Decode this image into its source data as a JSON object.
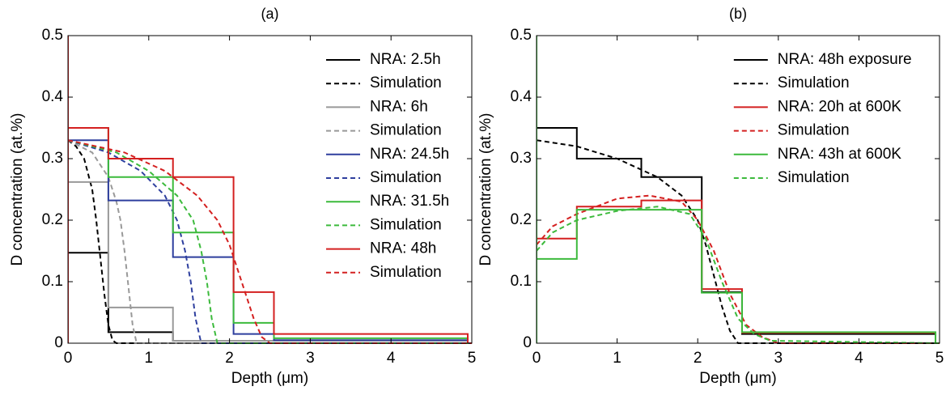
{
  "chart_data": [
    {
      "type": "line",
      "title": "(a)",
      "xlabel": "Depth (μm)",
      "ylabel": "D concentration (at.%)",
      "xlim": [
        0,
        5
      ],
      "xticks": [
        0,
        1,
        2,
        3,
        4,
        5
      ],
      "ylim": [
        0,
        0.5
      ],
      "yticks": [
        0,
        0.1,
        0.2,
        0.3,
        0.4,
        0.5
      ],
      "legend": "upper right",
      "series": [
        {
          "name": "NRA: 2.5h",
          "color": "#000000",
          "dashed": false,
          "x": [
            0,
            0,
            0.5,
            0.5,
            1.3,
            1.3,
            4.95,
            4.95
          ],
          "values": [
            0,
            0.147,
            0.147,
            0.018,
            0.018,
            0.004,
            0.004,
            0
          ]
        },
        {
          "name": "Simulation",
          "color": "#000000",
          "dashed": true,
          "x": [
            0,
            0.1,
            0.2,
            0.3,
            0.35,
            0.4,
            0.45,
            0.5,
            0.55,
            0.6,
            5
          ],
          "values": [
            0.33,
            0.32,
            0.3,
            0.25,
            0.2,
            0.14,
            0.08,
            0.03,
            0.005,
            0,
            0
          ]
        },
        {
          "name": "NRA: 6h",
          "color": "#999999",
          "dashed": false,
          "x": [
            0,
            0,
            0.5,
            0.5,
            1.3,
            1.3,
            4.95,
            4.95
          ],
          "values": [
            0,
            0.262,
            0.262,
            0.058,
            0.058,
            0.004,
            0.004,
            0
          ]
        },
        {
          "name": "Simulation",
          "color": "#999999",
          "dashed": true,
          "x": [
            0,
            0.3,
            0.5,
            0.6,
            0.65,
            0.7,
            0.75,
            0.8,
            0.85,
            5
          ],
          "values": [
            0.33,
            0.31,
            0.27,
            0.23,
            0.2,
            0.15,
            0.09,
            0.03,
            0,
            0
          ]
        },
        {
          "name": "NRA: 24.5h",
          "color": "#2e3f9e",
          "dashed": false,
          "x": [
            0,
            0,
            0.5,
            0.5,
            1.3,
            1.3,
            2.05,
            2.05,
            2.55,
            2.55,
            4.95,
            4.95
          ],
          "values": [
            0,
            0.33,
            0.33,
            0.232,
            0.232,
            0.14,
            0.14,
            0.015,
            0.015,
            0.005,
            0.005,
            0
          ]
        },
        {
          "name": "Simulation",
          "color": "#2e3f9e",
          "dashed": true,
          "x": [
            0,
            0.5,
            0.9,
            1.2,
            1.35,
            1.45,
            1.52,
            1.58,
            1.65,
            5
          ],
          "values": [
            0.33,
            0.31,
            0.28,
            0.24,
            0.2,
            0.15,
            0.1,
            0.04,
            0,
            0
          ]
        },
        {
          "name": "NRA: 31.5h",
          "color": "#3cba3c",
          "dashed": false,
          "x": [
            0,
            0,
            0.5,
            0.5,
            1.3,
            1.3,
            2.05,
            2.05,
            2.55,
            2.55,
            4.95,
            4.95
          ],
          "values": [
            0,
            0.35,
            0.35,
            0.27,
            0.27,
            0.18,
            0.18,
            0.033,
            0.033,
            0.008,
            0.008,
            0
          ]
        },
        {
          "name": "Simulation",
          "color": "#3cba3c",
          "dashed": true,
          "x": [
            0,
            0.6,
            1.0,
            1.35,
            1.55,
            1.65,
            1.72,
            1.78,
            1.85,
            5
          ],
          "values": [
            0.33,
            0.31,
            0.28,
            0.24,
            0.2,
            0.15,
            0.1,
            0.04,
            0,
            0
          ]
        },
        {
          "name": "NRA: 48h",
          "color": "#d42020",
          "dashed": false,
          "x": [
            0,
            0,
            0,
            0.5,
            0.5,
            1.3,
            1.3,
            2.05,
            2.05,
            2.55,
            2.55,
            4.95,
            4.95
          ],
          "values": [
            0,
            0.5,
            0.35,
            0.35,
            0.3,
            0.3,
            0.27,
            0.27,
            0.083,
            0.083,
            0.015,
            0.015,
            0
          ]
        },
        {
          "name": "Simulation",
          "color": "#d42020",
          "dashed": true,
          "x": [
            0,
            0.7,
            1.2,
            1.6,
            1.85,
            2.0,
            2.15,
            2.3,
            2.4,
            2.5,
            5
          ],
          "values": [
            0.33,
            0.31,
            0.28,
            0.24,
            0.2,
            0.16,
            0.1,
            0.04,
            0.01,
            0,
            0
          ]
        }
      ]
    },
    {
      "type": "line",
      "title": "(b)",
      "xlabel": "Depth (μm)",
      "ylabel": "D concentration (at.%)",
      "xlim": [
        0,
        5
      ],
      "xticks": [
        0,
        1,
        2,
        3,
        4,
        5
      ],
      "ylim": [
        0,
        0.5
      ],
      "yticks": [
        0,
        0.1,
        0.2,
        0.3,
        0.4,
        0.5
      ],
      "legend": "upper right",
      "series": [
        {
          "name": "NRA: 48h exposure",
          "color": "#000000",
          "dashed": false,
          "x": [
            0,
            0,
            0,
            0.5,
            0.5,
            1.3,
            1.3,
            2.05,
            2.05,
            2.55,
            2.55,
            4.95,
            4.95
          ],
          "values": [
            0,
            0.5,
            0.35,
            0.35,
            0.3,
            0.3,
            0.27,
            0.27,
            0.083,
            0.083,
            0.015,
            0.015,
            0
          ]
        },
        {
          "name": "Simulation",
          "color": "#000000",
          "dashed": true,
          "x": [
            0,
            0.5,
            1.0,
            1.5,
            1.8,
            2.0,
            2.1,
            2.2,
            2.3,
            2.4,
            2.5,
            5
          ],
          "values": [
            0.33,
            0.32,
            0.3,
            0.27,
            0.24,
            0.2,
            0.16,
            0.11,
            0.06,
            0.02,
            0,
            0
          ]
        },
        {
          "name": "NRA: 20h at 600K",
          "color": "#d42020",
          "dashed": false,
          "x": [
            0,
            0,
            0.5,
            0.5,
            1.3,
            1.3,
            2.05,
            2.05,
            2.55,
            2.55,
            4.95,
            4.95
          ],
          "values": [
            0.16,
            0.17,
            0.17,
            0.222,
            0.222,
            0.232,
            0.232,
            0.088,
            0.088,
            0.017,
            0.017,
            0
          ]
        },
        {
          "name": "Simulation",
          "color": "#d42020",
          "dashed": true,
          "x": [
            0,
            0.2,
            0.5,
            1.0,
            1.4,
            1.8,
            2.0,
            2.2,
            2.4,
            2.6,
            2.8,
            3.0,
            5
          ],
          "values": [
            0.16,
            0.19,
            0.21,
            0.235,
            0.24,
            0.23,
            0.2,
            0.15,
            0.08,
            0.03,
            0.01,
            0,
            0
          ]
        },
        {
          "name": "NRA: 43h at 600K",
          "color": "#3cba3c",
          "dashed": false,
          "x": [
            0,
            0,
            0,
            0.5,
            0.5,
            1.3,
            1.3,
            2.05,
            2.05,
            2.55,
            2.55,
            4.95,
            4.95
          ],
          "values": [
            0,
            0.5,
            0.137,
            0.137,
            0.217,
            0.217,
            0.217,
            0.217,
            0.082,
            0.082,
            0.018,
            0.018,
            0
          ]
        },
        {
          "name": "Simulation",
          "color": "#3cba3c",
          "dashed": true,
          "x": [
            0,
            0.2,
            0.5,
            1.0,
            1.5,
            1.9,
            2.1,
            2.3,
            2.5,
            2.7,
            2.9,
            5
          ],
          "values": [
            0.15,
            0.18,
            0.2,
            0.215,
            0.222,
            0.21,
            0.17,
            0.1,
            0.04,
            0.015,
            0.004,
            0
          ]
        }
      ]
    }
  ]
}
